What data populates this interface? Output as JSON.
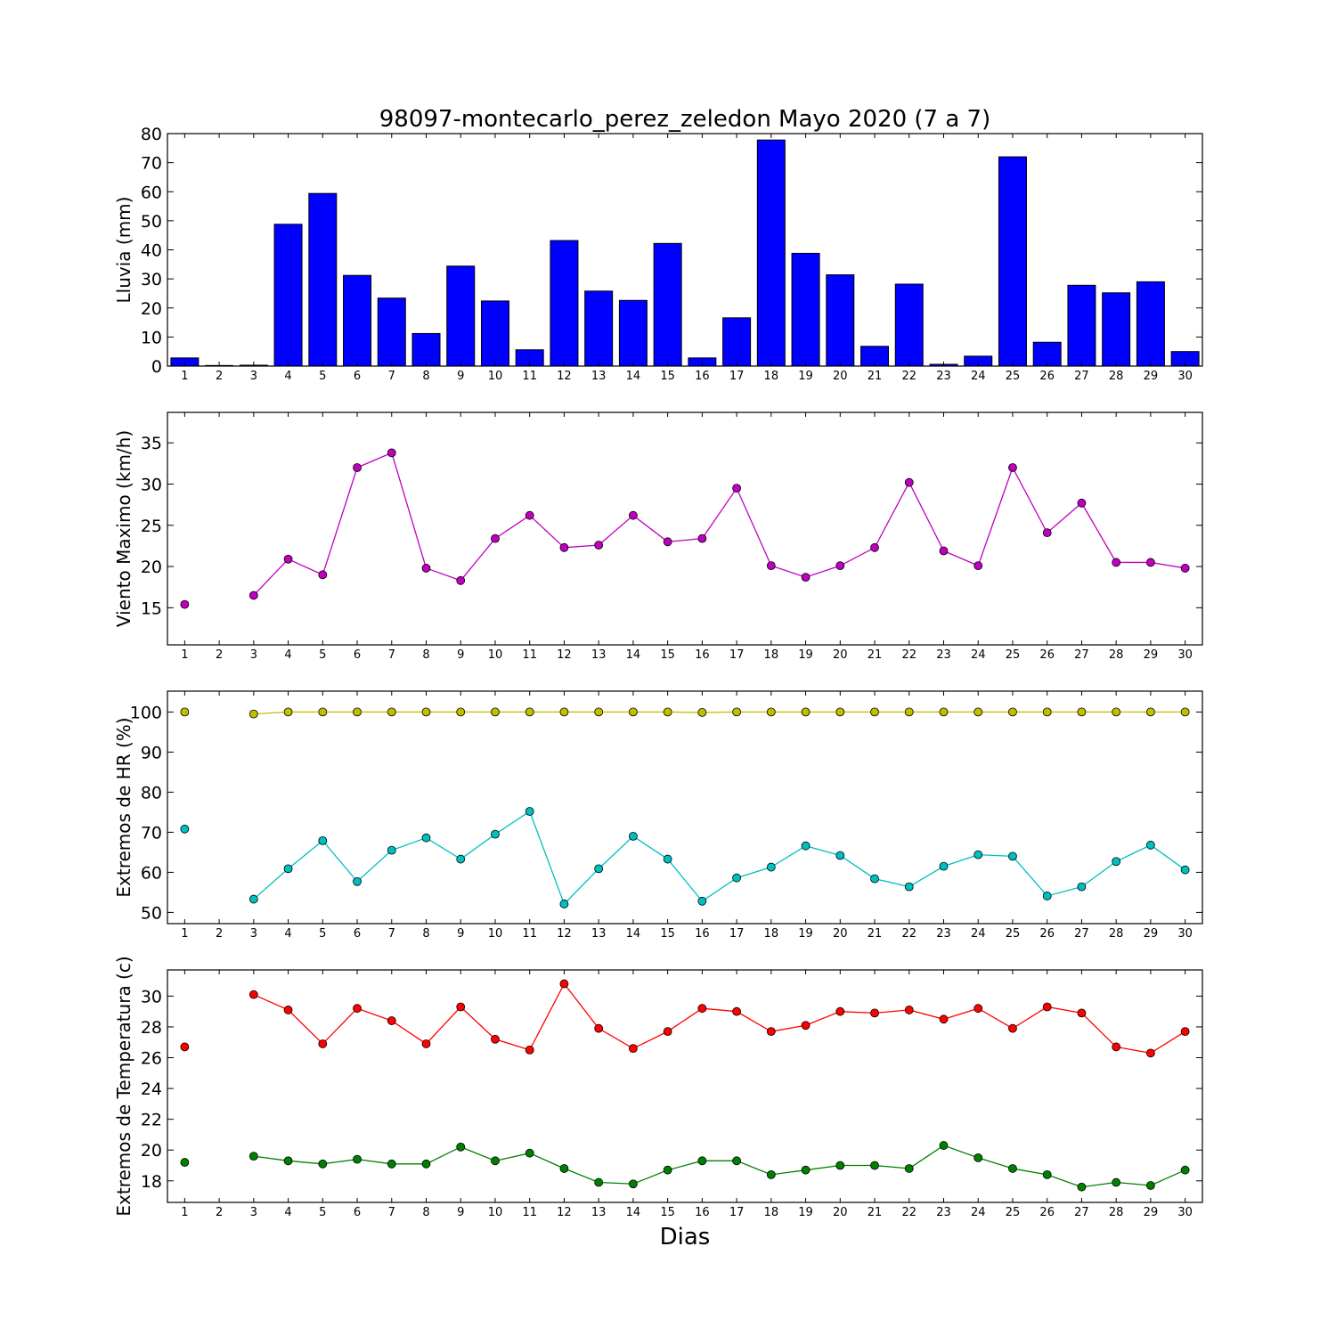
{
  "figure": {
    "title": "98097-montecarlo_perez_zeledon Mayo 2020  (7 a 7)",
    "xlabel": "Dias"
  },
  "chart_data": [
    {
      "type": "bar",
      "ylabel": "Lluvia (mm)",
      "xlim": [
        0.5,
        30.5
      ],
      "ylim": [
        0,
        80
      ],
      "yticks": [
        0,
        10,
        20,
        30,
        40,
        50,
        60,
        70,
        80
      ],
      "categories": [
        1,
        2,
        3,
        4,
        5,
        6,
        7,
        8,
        9,
        10,
        11,
        12,
        13,
        14,
        15,
        16,
        17,
        18,
        19,
        20,
        21,
        22,
        23,
        24,
        25,
        26,
        27,
        28,
        29,
        30
      ],
      "values": [
        2.8,
        0.2,
        0.3,
        48.8,
        59.4,
        31.2,
        23.4,
        11.2,
        34.4,
        22.4,
        5.6,
        43.2,
        25.8,
        22.6,
        42.2,
        2.8,
        16.6,
        77.8,
        38.8,
        31.4,
        6.8,
        28.2,
        0.6,
        3.4,
        72.0,
        8.2,
        27.8,
        25.2,
        29.0,
        5.0
      ],
      "color": "#0000ff",
      "grid": false
    },
    {
      "type": "line",
      "ylabel": "Viento Maximo (km/h)",
      "xlim": [
        0.5,
        30.5
      ],
      "ylim": [
        10.5,
        38.7
      ],
      "yticks": [
        15,
        20,
        25,
        30,
        35
      ],
      "x": [
        1,
        2,
        3,
        4,
        5,
        6,
        7,
        8,
        9,
        10,
        11,
        12,
        13,
        14,
        15,
        16,
        17,
        18,
        19,
        20,
        21,
        22,
        23,
        24,
        25,
        26,
        27,
        28,
        29,
        30
      ],
      "series": [
        {
          "values": [
            15.4,
            null,
            16.5,
            20.9,
            19.0,
            32.0,
            33.8,
            19.8,
            18.3,
            23.4,
            26.2,
            22.3,
            22.6,
            26.2,
            23.0,
            23.4,
            29.5,
            20.1,
            18.7,
            20.1,
            22.3,
            30.2,
            21.9,
            20.1,
            32.0,
            24.1,
            27.7,
            20.5,
            20.5,
            19.8
          ],
          "color": "#bf00bf"
        }
      ],
      "grid": false
    },
    {
      "type": "line",
      "ylabel": "Extremos de HR (%)",
      "xlim": [
        0.5,
        30.5
      ],
      "ylim": [
        47.2,
        105.2
      ],
      "yticks": [
        50,
        60,
        70,
        80,
        90,
        100
      ],
      "x": [
        1,
        2,
        3,
        4,
        5,
        6,
        7,
        8,
        9,
        10,
        11,
        12,
        13,
        14,
        15,
        16,
        17,
        18,
        19,
        20,
        21,
        22,
        23,
        24,
        25,
        26,
        27,
        28,
        29,
        30
      ],
      "series": [
        {
          "values": [
            100.0,
            null,
            99.5,
            100.0,
            100.0,
            100.0,
            100.0,
            100.0,
            100.0,
            100.0,
            100.0,
            100.0,
            100.0,
            100.0,
            100.0,
            99.9,
            100.0,
            100.0,
            100.0,
            100.0,
            100.0,
            100.0,
            100.0,
            100.0,
            100.0,
            100.0,
            100.0,
            100.0,
            100.0,
            100.0
          ],
          "color": "#bfbf00"
        },
        {
          "values": [
            70.8,
            null,
            53.3,
            60.9,
            67.9,
            57.7,
            65.5,
            68.6,
            63.3,
            69.5,
            75.2,
            52.1,
            60.9,
            69.0,
            63.3,
            52.8,
            58.6,
            61.3,
            66.6,
            64.2,
            58.4,
            56.4,
            61.5,
            64.4,
            64.0,
            54.1,
            56.4,
            62.7,
            66.8,
            60.6
          ],
          "color": "#00bfbf"
        }
      ],
      "grid": false
    },
    {
      "type": "line",
      "ylabel": "Extremos de Temperatura (c)",
      "xlim": [
        0.5,
        30.5
      ],
      "ylim": [
        16.6,
        31.7
      ],
      "yticks": [
        18,
        20,
        22,
        24,
        26,
        28,
        30
      ],
      "x": [
        1,
        2,
        3,
        4,
        5,
        6,
        7,
        8,
        9,
        10,
        11,
        12,
        13,
        14,
        15,
        16,
        17,
        18,
        19,
        20,
        21,
        22,
        23,
        24,
        25,
        26,
        27,
        28,
        29,
        30
      ],
      "series": [
        {
          "values": [
            26.7,
            null,
            30.1,
            29.1,
            26.9,
            29.2,
            28.4,
            26.9,
            29.3,
            27.2,
            26.5,
            30.8,
            27.9,
            26.6,
            27.7,
            29.2,
            29.0,
            27.7,
            28.1,
            29.0,
            28.9,
            29.1,
            28.5,
            29.2,
            27.9,
            29.3,
            28.9,
            26.7,
            26.3,
            27.7
          ],
          "color": "#ff0000"
        },
        {
          "values": [
            19.2,
            null,
            19.6,
            19.3,
            19.1,
            19.4,
            19.1,
            19.1,
            20.2,
            19.3,
            19.8,
            18.8,
            17.9,
            17.8,
            18.7,
            19.3,
            19.3,
            18.4,
            18.7,
            19.0,
            19.0,
            18.8,
            20.3,
            19.5,
            18.8,
            18.4,
            17.6,
            17.9,
            17.7,
            18.7
          ],
          "color": "#008000"
        }
      ],
      "grid": false
    }
  ]
}
